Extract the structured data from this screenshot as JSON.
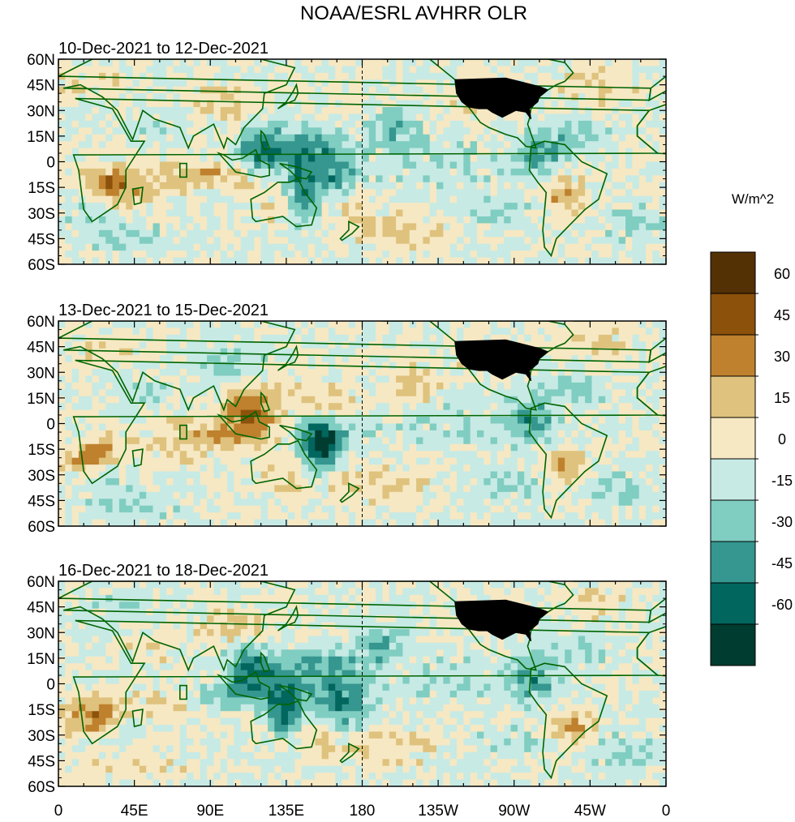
{
  "figure": {
    "title": "NOAA/ESRL AVHRR OLR"
  },
  "panels": [
    {
      "title": "10-Dec-2021 to 12-Dec-2021",
      "seed": 11
    },
    {
      "title": "13-Dec-2021 to 15-Dec-2021",
      "seed": 29
    },
    {
      "title": "16-Dec-2021 to 18-Dec-2021",
      "seed": 47
    }
  ],
  "axes": {
    "lat_ticks": [
      "60N",
      "45N",
      "30N",
      "15N",
      "0",
      "15S",
      "30S",
      "45S",
      "60S"
    ],
    "lon_ticks": [
      "0",
      "45E",
      "90E",
      "135E",
      "180",
      "135W",
      "90W",
      "45W",
      "0"
    ],
    "lat_range": [
      -60,
      60
    ],
    "lon_range": [
      0,
      360
    ]
  },
  "colorbar": {
    "units": "W/m^2",
    "labels": [
      "60",
      "45",
      "30",
      "15",
      "0",
      "-15",
      "-30",
      "-45",
      "-60"
    ],
    "colors": [
      "#543005",
      "#8c510a",
      "#bf812d",
      "#dfc27d",
      "#f6e8c3",
      "#c7eae5",
      "#80cdc1",
      "#35978f",
      "#01665e",
      "#003c30"
    ]
  },
  "map_colors": {
    "coast": "#006400",
    "usa": "#000000",
    "dateline": "#000000"
  }
}
